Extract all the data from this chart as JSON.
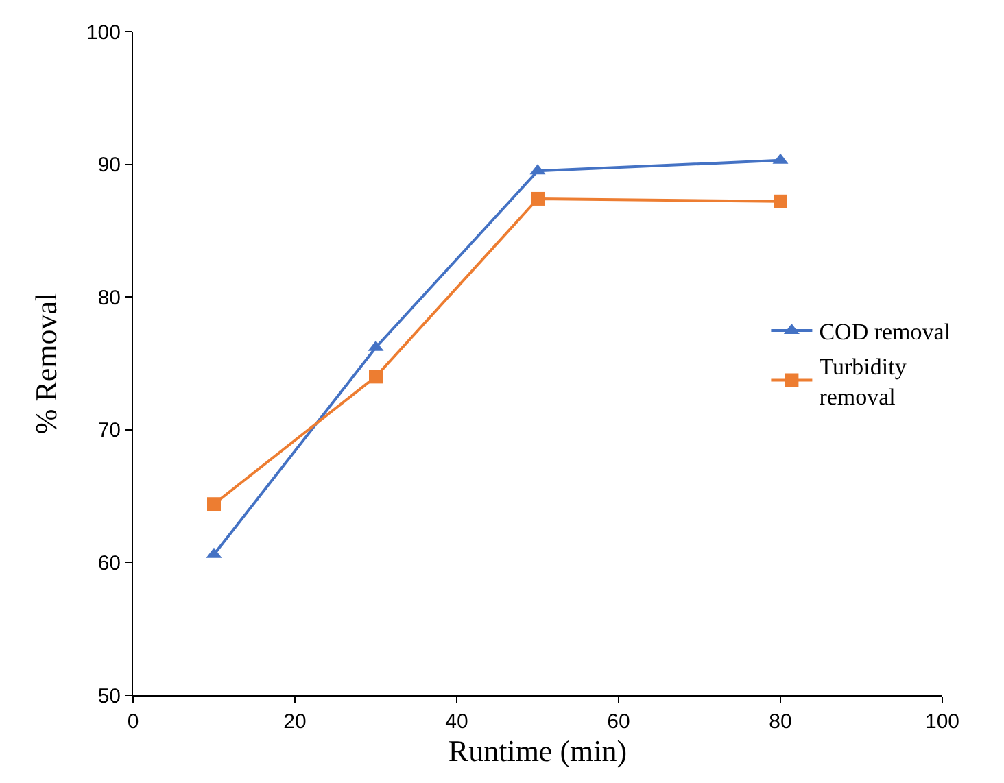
{
  "chart_data": {
    "type": "line",
    "xlabel": "Runtime (min)",
    "ylabel": "% Removal",
    "x": [
      10,
      30,
      50,
      80
    ],
    "series": [
      {
        "name": "COD removal",
        "color": "#4472c4",
        "marker": "triangle",
        "values": [
          60.6,
          76.2,
          89.5,
          90.3
        ]
      },
      {
        "name": "Turbidity removal",
        "color": "#ed7d31",
        "marker": "square",
        "values": [
          64.4,
          74.0,
          87.4,
          87.2
        ]
      }
    ],
    "xlim": [
      0,
      100
    ],
    "xticks": [
      0,
      20,
      40,
      60,
      80,
      100
    ],
    "ylim": [
      50,
      100
    ],
    "yticks": [
      50,
      60,
      70,
      80,
      90,
      100
    ],
    "legend": "right"
  }
}
